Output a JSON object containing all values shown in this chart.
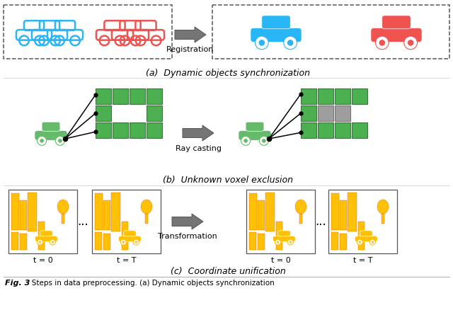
{
  "section_a_label": "(a)  Dynamic objects synchronization",
  "section_b_label": "(b)  Unknown voxel exclusion",
  "section_c_label": "(c)  Coordinate unification",
  "arrow_label_a": "Registration",
  "arrow_label_b": "Ray casting",
  "arrow_label_c": "Transformation",
  "green_voxel": "#4caf50",
  "green_voxel_edge": "#2e7d32",
  "gray_voxel": "#9e9e9e",
  "gray_voxel_edge": "#757575",
  "green_car": "#66bb6a",
  "arrow_fill": "#757575",
  "cyan": "#29b6f6",
  "red": "#ef5350",
  "yellow": "#ffc107",
  "yellow_edge": "#e65100",
  "t0_label": "t = 0",
  "ellipsis": "...",
  "tT_label": "t = T",
  "fig_caption_bold": "Fig. 3",
  "fig_caption_rest": "   Steps in data preprocessing. (a) Dynamic objects synchronization"
}
